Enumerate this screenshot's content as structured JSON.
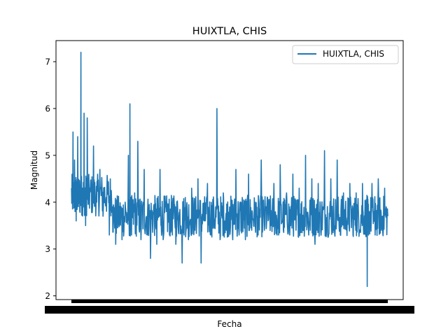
{
  "chart_data": {
    "type": "line",
    "title": "HUIXTLA, CHIS",
    "xlabel": "Fecha",
    "ylabel": "Magnitud",
    "ylim": [
      1.92,
      7.45
    ],
    "yticks": [
      2,
      3,
      4,
      5,
      6,
      7
    ],
    "grid": false,
    "legend_position": "top-right",
    "x_tick_labels_overlapping": true,
    "series": [
      {
        "name": "HUIXTLA, CHIS",
        "color": "#1f77b4",
        "keypoints": [
          [
            0.0,
            4.3
          ],
          [
            0.005,
            5.5
          ],
          [
            0.01,
            4.9
          ],
          [
            0.015,
            3.6
          ],
          [
            0.02,
            5.4
          ],
          [
            0.025,
            4.2
          ],
          [
            0.03,
            7.2
          ],
          [
            0.035,
            4.0
          ],
          [
            0.04,
            5.9
          ],
          [
            0.045,
            3.5
          ],
          [
            0.05,
            5.8
          ],
          [
            0.06,
            4.3
          ],
          [
            0.07,
            5.2
          ],
          [
            0.08,
            4.0
          ],
          [
            0.09,
            4.7
          ],
          [
            0.1,
            3.7
          ],
          [
            0.11,
            4.1
          ],
          [
            0.12,
            3.3
          ],
          [
            0.13,
            3.9
          ],
          [
            0.14,
            3.1
          ],
          [
            0.15,
            3.6
          ],
          [
            0.16,
            3.2
          ],
          [
            0.17,
            4.0
          ],
          [
            0.18,
            5.0
          ],
          [
            0.185,
            6.1
          ],
          [
            0.19,
            3.3
          ],
          [
            0.2,
            4.2
          ],
          [
            0.21,
            5.3
          ],
          [
            0.22,
            3.2
          ],
          [
            0.23,
            4.7
          ],
          [
            0.24,
            3.3
          ],
          [
            0.25,
            2.8
          ],
          [
            0.26,
            3.9
          ],
          [
            0.27,
            3.1
          ],
          [
            0.28,
            4.7
          ],
          [
            0.29,
            3.2
          ],
          [
            0.3,
            3.8
          ],
          [
            0.31,
            3.3
          ],
          [
            0.32,
            4.0
          ],
          [
            0.33,
            3.1
          ],
          [
            0.34,
            3.7
          ],
          [
            0.35,
            2.7
          ],
          [
            0.36,
            4.1
          ],
          [
            0.37,
            3.2
          ],
          [
            0.38,
            4.3
          ],
          [
            0.39,
            3.4
          ],
          [
            0.4,
            4.5
          ],
          [
            0.41,
            2.7
          ],
          [
            0.42,
            3.6
          ],
          [
            0.43,
            4.4
          ],
          [
            0.44,
            3.3
          ],
          [
            0.45,
            3.9
          ],
          [
            0.46,
            6.0
          ],
          [
            0.47,
            3.2
          ],
          [
            0.48,
            4.2
          ],
          [
            0.49,
            3.4
          ],
          [
            0.5,
            3.9
          ],
          [
            0.51,
            3.2
          ],
          [
            0.52,
            4.7
          ],
          [
            0.53,
            3.3
          ],
          [
            0.54,
            4.1
          ],
          [
            0.55,
            3.2
          ],
          [
            0.56,
            4.6
          ],
          [
            0.57,
            3.4
          ],
          [
            0.58,
            4.0
          ],
          [
            0.59,
            3.3
          ],
          [
            0.6,
            4.9
          ],
          [
            0.61,
            3.4
          ],
          [
            0.62,
            4.1
          ],
          [
            0.63,
            3.5
          ],
          [
            0.64,
            4.4
          ],
          [
            0.65,
            3.3
          ],
          [
            0.66,
            4.8
          ],
          [
            0.67,
            3.4
          ],
          [
            0.68,
            4.2
          ],
          [
            0.69,
            3.3
          ],
          [
            0.7,
            4.6
          ],
          [
            0.71,
            3.4
          ],
          [
            0.72,
            4.3
          ],
          [
            0.73,
            3.5
          ],
          [
            0.74,
            5.0
          ],
          [
            0.75,
            3.3
          ],
          [
            0.76,
            4.5
          ],
          [
            0.77,
            3.1
          ],
          [
            0.78,
            4.4
          ],
          [
            0.79,
            3.4
          ],
          [
            0.8,
            5.1
          ],
          [
            0.81,
            3.3
          ],
          [
            0.82,
            4.5
          ],
          [
            0.83,
            3.4
          ],
          [
            0.84,
            4.9
          ],
          [
            0.85,
            3.3
          ],
          [
            0.86,
            4.2
          ],
          [
            0.87,
            3.6
          ],
          [
            0.88,
            4.4
          ],
          [
            0.89,
            3.3
          ],
          [
            0.9,
            4.2
          ],
          [
            0.91,
            3.4
          ],
          [
            0.92,
            4.4
          ],
          [
            0.93,
            3.3
          ],
          [
            0.935,
            2.2
          ],
          [
            0.94,
            3.8
          ],
          [
            0.95,
            4.4
          ],
          [
            0.96,
            3.3
          ],
          [
            0.97,
            4.5
          ],
          [
            0.98,
            3.4
          ],
          [
            0.99,
            4.3
          ],
          [
            1.0,
            3.7
          ]
        ]
      }
    ]
  }
}
